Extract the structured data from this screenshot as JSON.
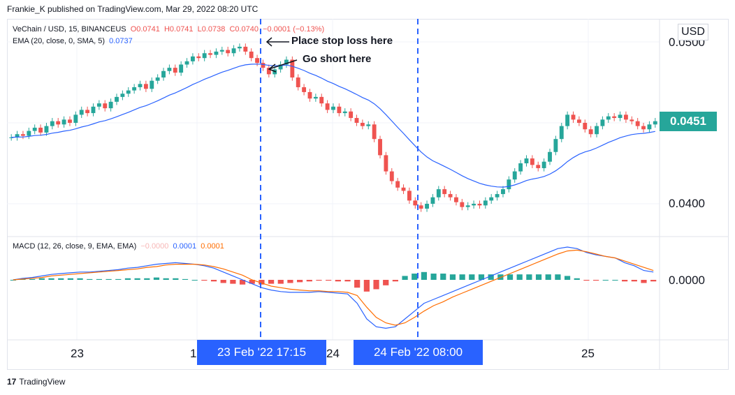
{
  "header": {
    "published": "Frankie_K published on TradingView.com, Mar 29, 2022 08:20 UTC"
  },
  "legend_main": {
    "symbol": "VeChain / USD, 15, BINANCEUS",
    "o": "O0.0741",
    "h": "H0.0741",
    "l": "L0.0738",
    "c": "C0.0740",
    "change": "−0.0001 (−0.13%)",
    "ema": "EMA (20, close, 0, SMA, 5)",
    "ema_val": "0.0737"
  },
  "legend_macd": {
    "title": "MACD (12, 26, close, 9, EMA, EMA)",
    "hist": "−0.0000",
    "macd": "0.0001",
    "signal": "0.0001"
  },
  "price_axis": {
    "top": "0.0500",
    "mid": "0.0400",
    "current": "0.0451",
    "macd_zero": "0.0000",
    "currency": "USD"
  },
  "time_axis": {
    "t1": "23",
    "t2": "1",
    "t3": "24",
    "t4": "25"
  },
  "crosshair_badges": {
    "b1": "23 Feb '22   17:15",
    "b2": "24 Feb '22   08:00"
  },
  "annotations": {
    "stop": "Place stop loss here",
    "short": "Go short here"
  },
  "footer": {
    "brand": "TradingView",
    "logo": "17"
  },
  "colors": {
    "up": "#26a69a",
    "down": "#ef5350",
    "ema": "#2962ff",
    "macd": "#2962ff",
    "signal": "#ff6d00",
    "badge": "#2962ff"
  },
  "chart_data": {
    "type": "candlestick",
    "ema_period": 20,
    "closes": [
      0.0441,
      0.0443,
      0.0442,
      0.0445,
      0.0447,
      0.0444,
      0.0448,
      0.0451,
      0.0449,
      0.0452,
      0.045,
      0.0455,
      0.0458,
      0.0456,
      0.046,
      0.0462,
      0.0459,
      0.0463,
      0.0466,
      0.0468,
      0.047,
      0.0472,
      0.0474,
      0.0471,
      0.0476,
      0.0478,
      0.0482,
      0.0484,
      0.0481,
      0.0486,
      0.0488,
      0.0491,
      0.049,
      0.0493,
      0.0492,
      0.0494,
      0.0495,
      0.0493,
      0.0496,
      0.0497,
      0.0494,
      0.049,
      0.0487,
      0.0484,
      0.048,
      0.0483,
      0.0486,
      0.0489,
      0.0478,
      0.0472,
      0.0469,
      0.0465,
      0.0466,
      0.0462,
      0.0458,
      0.046,
      0.0456,
      0.0457,
      0.0453,
      0.045,
      0.0448,
      0.0449,
      0.044,
      0.043,
      0.042,
      0.0414,
      0.041,
      0.0408,
      0.0402,
      0.0399,
      0.0397,
      0.04,
      0.0404,
      0.0409,
      0.0406,
      0.0404,
      0.0401,
      0.0398,
      0.0399,
      0.04,
      0.0399,
      0.0402,
      0.0404,
      0.0406,
      0.0409,
      0.0415,
      0.042,
      0.0425,
      0.0428,
      0.0424,
      0.0422,
      0.0426,
      0.0432,
      0.044,
      0.0448,
      0.0455,
      0.0452,
      0.045,
      0.0446,
      0.0443,
      0.0448,
      0.0452,
      0.0454,
      0.0453,
      0.0455,
      0.0452,
      0.0451,
      0.0448,
      0.0446,
      0.0449,
      0.0451
    ],
    "macd_line": [
      0,
      2e-05,
      3e-05,
      5e-05,
      7e-05,
      8e-05,
      9e-05,
      0.0001,
      0.0001,
      0.00011,
      0.00012,
      0.00013,
      0.00015,
      0.00016,
      0.00018,
      0.0002,
      0.00021,
      0.00022,
      0.00021,
      0.0002,
      0.00018,
      0.00015,
      0.0001,
      5e-05,
      0.0,
      -5e-05,
      -0.0001,
      -0.00013,
      -0.00015,
      -0.00016,
      -0.00016,
      -0.00016,
      -0.00015,
      -0.00016,
      -0.00017,
      -0.00018,
      -0.0003,
      -0.0005,
      -0.0006,
      -0.00062,
      -0.0006,
      -0.0005,
      -0.0004,
      -0.0003,
      -0.00025,
      -0.0002,
      -0.00015,
      -0.0001,
      -5e-05,
      0.0,
      5e-05,
      0.0001,
      0.00015,
      0.0002,
      0.00025,
      0.0003,
      0.00035,
      0.0004,
      0.00042,
      0.0004,
      0.00035,
      0.00032,
      0.0003,
      0.00028,
      0.00022,
      0.00018,
      0.00012,
      0.0001
    ],
    "signal_line": [
      0,
      1e-05,
      2e-05,
      3e-05,
      5e-05,
      6e-05,
      7e-05,
      8e-05,
      9e-05,
      0.0001,
      0.00011,
      0.00012,
      0.00013,
      0.00014,
      0.00016,
      0.00017,
      0.00019,
      0.0002,
      0.0002,
      0.0002,
      0.00019,
      0.00017,
      0.00014,
      0.0001,
      6e-05,
      0.0,
      -4e-05,
      -8e-05,
      -0.0001,
      -0.00012,
      -0.00013,
      -0.00014,
      -0.00014,
      -0.00015,
      -0.00015,
      -0.00016,
      -0.0002,
      -0.00035,
      -0.00048,
      -0.00055,
      -0.00058,
      -0.00055,
      -0.00048,
      -0.0004,
      -0.00033,
      -0.00028,
      -0.00022,
      -0.00017,
      -0.00012,
      -7e-05,
      -2e-05,
      3e-05,
      8e-05,
      0.00013,
      0.00018,
      0.00023,
      0.00028,
      0.00033,
      0.00037,
      0.00038,
      0.00036,
      0.00033,
      0.0003,
      0.00028,
      0.00024,
      0.0002,
      0.00016,
      0.00012
    ]
  }
}
